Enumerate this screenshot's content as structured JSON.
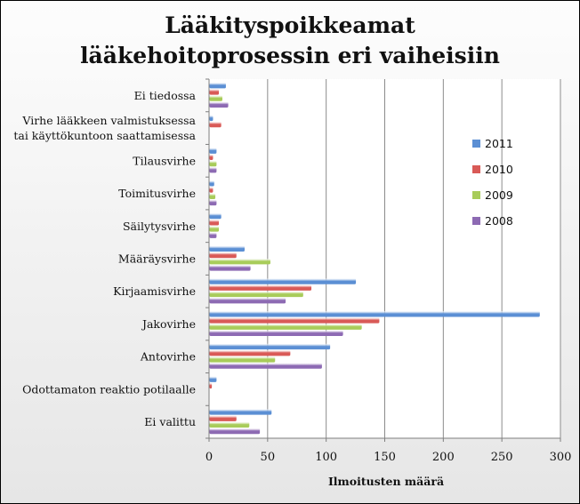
{
  "chart_data": {
    "type": "bar",
    "orientation": "horizontal",
    "title": [
      "Lääkityspoikkeamat",
      "lääkehoitoprosessin eri vaiheisiin"
    ],
    "xlabel": "Ilmoitusten määrä",
    "ylabel": "",
    "xlim": [
      0,
      300
    ],
    "xticks": [
      0,
      50,
      100,
      150,
      200,
      250,
      300
    ],
    "grid": true,
    "legend_position": "right",
    "categories": [
      "Ei tiedossa",
      "Virhe lääkkeen valmistuksessa tai käyttökuntoon saattamisessa",
      "Tilausvirhe",
      "Toimitusvirhe",
      "Säilytysvirhe",
      "Määräysvirhe",
      "Kirjaamisvirhe",
      "Jakovirhe",
      "Antovirhe",
      "Odottamaton reaktio potilaalle",
      "Ei valittu"
    ],
    "category_label_lines": [
      [
        "Ei tiedossa"
      ],
      [
        "Virhe lääkkeen valmistuksessa",
        "tai käyttökuntoon saattamisessa"
      ],
      [
        "Tilausvirhe"
      ],
      [
        "Toimitusvirhe"
      ],
      [
        "Säilytysvirhe"
      ],
      [
        "Määräysvirhe"
      ],
      [
        "Kirjaamisvirhe"
      ],
      [
        "Jakovirhe"
      ],
      [
        "Antovirhe"
      ],
      [
        "Odottamaton reaktio potilaalle"
      ],
      [
        "Ei valittu"
      ]
    ],
    "series": [
      {
        "name": "2011",
        "color": "#5b8fd4",
        "values": [
          14,
          3,
          6,
          4,
          10,
          30,
          125,
          282,
          103,
          6,
          53
        ]
      },
      {
        "name": "2010",
        "color": "#d95a57",
        "values": [
          8,
          10,
          3,
          3,
          8,
          23,
          87,
          145,
          69,
          2,
          23
        ]
      },
      {
        "name": "2009",
        "color": "#a8cc5a",
        "values": [
          11,
          0,
          6,
          5,
          8,
          52,
          80,
          130,
          56,
          0,
          34
        ]
      },
      {
        "name": "2008",
        "color": "#8d6ab3",
        "values": [
          16,
          0,
          6,
          6,
          6,
          35,
          65,
          114,
          96,
          0,
          43
        ]
      }
    ]
  }
}
